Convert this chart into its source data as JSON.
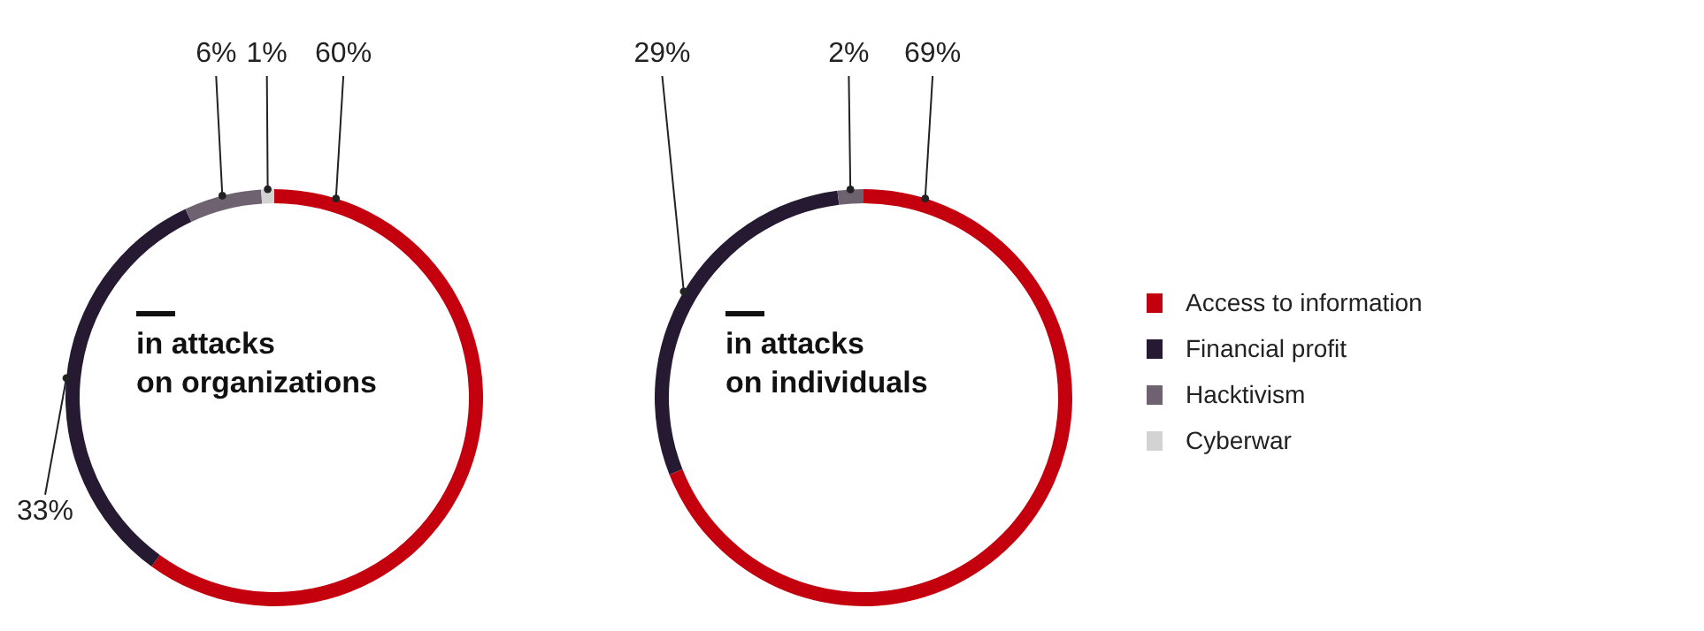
{
  "chart_data": [
    {
      "type": "donut",
      "title": "in attacks\non organizations",
      "categories": [
        null,
        null,
        null,
        null
      ],
      "values": [
        60,
        33,
        6,
        1
      ],
      "colors": [
        "#c4000f",
        "#261a33",
        "#6e6170",
        "#d3d3d3"
      ],
      "value_labels": [
        "60%",
        "33%",
        "6%",
        "1%"
      ],
      "legend": false
    },
    {
      "type": "donut",
      "title": "in attacks\non individuals",
      "categories": [
        "Access to information",
        "Financial profit",
        "Hacktivism",
        "Cyberwar"
      ],
      "values": [
        69,
        29,
        2,
        0
      ],
      "colors": [
        "#c4000f",
        "#261a33",
        "#6e6170",
        "#d3d3d3"
      ],
      "value_labels": [
        "69%",
        "29%",
        "2%",
        null
      ],
      "legend": "right"
    }
  ]
}
